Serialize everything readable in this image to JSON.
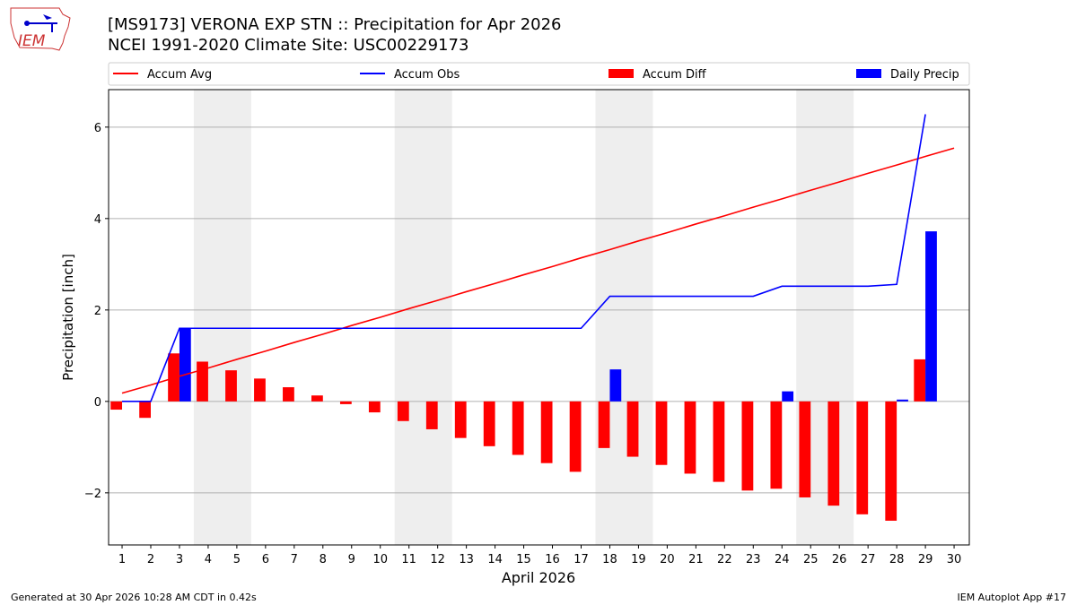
{
  "header": {
    "title": "[MS9173] VERONA EXP STN :: Precipitation for Apr 2026",
    "subtitle": "NCEI 1991-2020 Climate Site: USC00229173",
    "logo_text": "IEM"
  },
  "footer": {
    "left": "Generated at 30 Apr 2026 10:28 AM CDT in 0.42s",
    "right": "IEM Autoplot App #17"
  },
  "chart_data": {
    "type": "bar",
    "xlabel": "April 2026",
    "ylabel": "Precipitation [inch]",
    "xlim": [
      0.53,
      30.53
    ],
    "ylim": [
      -3.14,
      6.82
    ],
    "yticks": [
      -2,
      0,
      2,
      4,
      6
    ],
    "ytick_labels": [
      "−2",
      "0",
      "2",
      "4",
      "6"
    ],
    "grid": "y",
    "legend_placement": "top, above plot",
    "weekend_shading": [
      [
        3.5,
        5.5
      ],
      [
        10.5,
        12.5
      ],
      [
        17.5,
        19.5
      ],
      [
        24.5,
        26.5
      ]
    ],
    "colors": {
      "avg": "#ff0000",
      "obs": "#0000ff",
      "diff": "#ff0000",
      "daily": "#0000ff",
      "weekend": "#eeeeee"
    },
    "legend": [
      "Accum Avg",
      "Accum Obs",
      "Accum Diff",
      "Daily Precip"
    ],
    "x": [
      1,
      2,
      3,
      4,
      5,
      6,
      7,
      8,
      9,
      10,
      11,
      12,
      13,
      14,
      15,
      16,
      17,
      18,
      19,
      20,
      21,
      22,
      23,
      24,
      25,
      26,
      27,
      28,
      29,
      30
    ],
    "series": [
      {
        "name": "Accum Avg",
        "type": "line",
        "values": [
          0.18,
          0.36,
          0.55,
          0.73,
          0.92,
          1.1,
          1.29,
          1.47,
          1.66,
          1.84,
          2.03,
          2.21,
          2.4,
          2.58,
          2.77,
          2.95,
          3.14,
          3.32,
          3.51,
          3.69,
          3.88,
          4.06,
          4.25,
          4.43,
          4.62,
          4.8,
          4.99,
          5.17,
          5.36,
          5.54
        ]
      },
      {
        "name": "Accum Obs",
        "type": "line",
        "values": [
          0,
          0,
          1.6,
          1.6,
          1.6,
          1.6,
          1.6,
          1.6,
          1.6,
          1.6,
          1.6,
          1.6,
          1.6,
          1.6,
          1.6,
          1.6,
          1.6,
          2.3,
          2.3,
          2.3,
          2.3,
          2.3,
          2.3,
          2.52,
          2.52,
          2.52,
          2.52,
          2.56,
          6.28,
          null
        ]
      },
      {
        "name": "Accum Diff",
        "type": "bar",
        "values": [
          -0.18,
          -0.36,
          1.05,
          0.87,
          0.68,
          0.5,
          0.31,
          0.13,
          -0.06,
          -0.24,
          -0.43,
          -0.61,
          -0.8,
          -0.98,
          -1.17,
          -1.35,
          -1.54,
          -1.02,
          -1.21,
          -1.39,
          -1.58,
          -1.76,
          -1.95,
          -1.91,
          -2.1,
          -2.28,
          -2.47,
          -2.61,
          0.92,
          null
        ]
      },
      {
        "name": "Daily Precip",
        "type": "bar",
        "values": [
          0,
          0,
          1.6,
          0,
          0,
          0,
          0,
          0,
          0,
          0,
          0,
          0,
          0,
          0,
          0,
          0,
          0,
          0.7,
          0,
          0,
          0,
          0,
          0,
          0.22,
          0,
          0,
          0,
          0.04,
          3.72,
          null
        ]
      }
    ]
  }
}
